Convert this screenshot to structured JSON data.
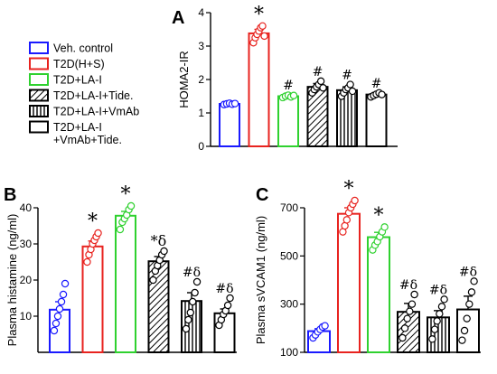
{
  "legend": [
    {
      "label": "Veh. control",
      "color": "#1a1aff",
      "pattern": "none"
    },
    {
      "label": "T2D(H+S)",
      "color": "#e8231f",
      "pattern": "none"
    },
    {
      "label": "T2D+LA-I",
      "color": "#2fd12f",
      "pattern": "none"
    },
    {
      "label": "T2D+LA-I+Tide.",
      "color": "#000000",
      "pattern": "diagonal"
    },
    {
      "label": "T2D+LA-I+VmAb",
      "color": "#000000",
      "pattern": "vertical"
    },
    {
      "label": "T2D+LA-I",
      "label2": "+VmAb+Tide.",
      "color": "#000000",
      "pattern": "none"
    }
  ],
  "chart_data": [
    {
      "panel": "A",
      "type": "bar",
      "ylabel": "HOMA2-IR",
      "ylim": [
        0,
        4
      ],
      "yticks": [
        0,
        1,
        2,
        3,
        4
      ],
      "grid": false,
      "series": [
        {
          "name": "Veh. control",
          "value": 1.27,
          "error": 0.03,
          "points": [
            1.25,
            1.27,
            1.29,
            1.26,
            1.28
          ],
          "annotation": ""
        },
        {
          "name": "T2D(H+S)",
          "value": 3.38,
          "error": 0.12,
          "points": [
            3.1,
            3.25,
            3.35,
            3.45,
            3.55,
            3.6,
            3.3
          ],
          "annotation": "*"
        },
        {
          "name": "T2D+LA-I",
          "value": 1.5,
          "error": 0.04,
          "points": [
            1.46,
            1.5,
            1.53,
            1.48,
            1.52
          ],
          "annotation": "#"
        },
        {
          "name": "T2D+LA-I+Tide.",
          "value": 1.78,
          "error": 0.1,
          "points": [
            1.6,
            1.7,
            1.78,
            1.85,
            1.95,
            1.75
          ],
          "annotation": "#"
        },
        {
          "name": "T2D+LA-I+VmAb",
          "value": 1.68,
          "error": 0.1,
          "points": [
            1.5,
            1.6,
            1.7,
            1.75,
            1.85,
            1.65
          ],
          "annotation": "#"
        },
        {
          "name": "T2D+LA-I +VmAb+Tide.",
          "value": 1.55,
          "error": 0.05,
          "points": [
            1.48,
            1.52,
            1.56,
            1.6,
            1.55
          ],
          "annotation": "#"
        }
      ]
    },
    {
      "panel": "B",
      "type": "bar",
      "ylabel": "Plasma histamine (ng/ml)",
      "ylim": [
        0,
        40
      ],
      "yticks": [
        10,
        20,
        30,
        40
      ],
      "grid": false,
      "series": [
        {
          "name": "Veh. control",
          "value": 11.8,
          "error": 2.2,
          "points": [
            6,
            8,
            10,
            12,
            14,
            16,
            19
          ],
          "annotation": ""
        },
        {
          "name": "T2D(H+S)",
          "value": 29.3,
          "error": 1.5,
          "points": [
            25,
            27,
            28.5,
            30,
            31,
            32,
            33
          ],
          "annotation": "*"
        },
        {
          "name": "T2D+LA-I",
          "value": 37.8,
          "error": 1.2,
          "points": [
            34,
            36,
            37,
            38,
            39.5,
            40.5
          ],
          "annotation": "*"
        },
        {
          "name": "T2D+LA-I+Tide.",
          "value": 25.2,
          "error": 1.3,
          "points": [
            20,
            22.5,
            24,
            25.5,
            27,
            28
          ],
          "annotation": "*δ"
        },
        {
          "name": "T2D+LA-I+VmAb",
          "value": 14.2,
          "error": 2.3,
          "points": [
            6.5,
            9,
            11,
            14,
            16.5,
            19.5
          ],
          "annotation": "#δ"
        },
        {
          "name": "T2D+LA-I +VmAb+Tide.",
          "value": 10.8,
          "error": 1.2,
          "points": [
            7.5,
            9,
            10.5,
            11.5,
            13,
            15
          ],
          "annotation": "#δ"
        }
      ]
    },
    {
      "panel": "C",
      "type": "bar",
      "ylabel": "Plasma sVCAM1 (ng/ml)",
      "ylim": [
        100,
        700
      ],
      "yticks": [
        100,
        300,
        500,
        700
      ],
      "grid": false,
      "series": [
        {
          "name": "Veh. control",
          "value": 188,
          "error": 10,
          "points": [
            160,
            172,
            185,
            195,
            205,
            210
          ],
          "annotation": ""
        },
        {
          "name": "T2D(H+S)",
          "value": 675,
          "error": 25,
          "points": [
            600,
            625,
            650,
            680,
            700,
            715,
            730
          ],
          "annotation": "*"
        },
        {
          "name": "T2D+LA-I",
          "value": 578,
          "error": 20,
          "points": [
            525,
            545,
            560,
            580,
            600,
            620
          ],
          "annotation": "*"
        },
        {
          "name": "T2D+LA-I+Tide.",
          "value": 268,
          "error": 35,
          "points": [
            160,
            200,
            240,
            270,
            300,
            340
          ],
          "annotation": "#δ"
        },
        {
          "name": "T2D+LA-I+VmAb",
          "value": 245,
          "error": 28,
          "points": [
            155,
            195,
            230,
            260,
            290,
            320
          ],
          "annotation": "#δ"
        },
        {
          "name": "T2D+LA-I +VmAb+Tide.",
          "value": 278,
          "error": 55,
          "points": [
            150,
            190,
            240,
            300,
            350,
            395
          ],
          "annotation": "#δ"
        }
      ]
    }
  ]
}
